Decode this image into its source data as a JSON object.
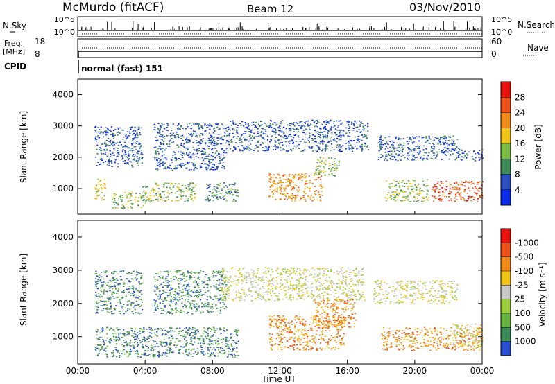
{
  "header": {
    "station": "McMurdo (fitACF)",
    "beam": "Beam 12",
    "date": "03/Nov/2010"
  },
  "status_panels": {
    "nsky_label": "N.Sky",
    "nsky_ticks": [
      "10^5",
      "10^0"
    ],
    "nsearch_label": "N.Search",
    "nsearch_ticks": [
      "10^5",
      "10^0"
    ],
    "freq_label_1": "Freq.",
    "freq_label_2": "[MHz]",
    "freq_ticks": [
      "18",
      "8"
    ],
    "nave_label": "Nave",
    "nave_ticks": [
      "60",
      "0"
    ],
    "cpid_label": "CPID",
    "cpid_value": "normal (fast) 151"
  },
  "chart_data": [
    {
      "type": "heatmap",
      "name": "power-panel",
      "ylabel": "Slant Range [km]",
      "ylim": [
        180,
        4500
      ],
      "yticks": [
        "1000",
        "2000",
        "3000",
        "4000"
      ],
      "colorbar_label": "Power [dB]",
      "colorbar_ticks": [
        "4",
        "8",
        "12",
        "16",
        "20",
        "24",
        "28"
      ],
      "colorbar_colors": [
        "#0a2ae8",
        "#2c4fc0",
        "#3e8a58",
        "#78bc44",
        "#f0c418",
        "#f08a18",
        "#ee5218",
        "#e8100c"
      ],
      "regions": [
        {
          "x": [
            1.0,
            3.8
          ],
          "r": [
            1700,
            3000
          ],
          "level": 1
        },
        {
          "x": [
            4.5,
            8.8
          ],
          "r": [
            1600,
            3100
          ],
          "level": 1
        },
        {
          "x": [
            8.8,
            17.2
          ],
          "r": [
            2200,
            3200
          ],
          "level": 1
        },
        {
          "x": [
            17.8,
            22.5
          ],
          "r": [
            1900,
            2700
          ],
          "level": 1
        },
        {
          "x": [
            22.5,
            24.0
          ],
          "r": [
            1900,
            2300
          ],
          "level": 1
        },
        {
          "x": [
            1.0,
            1.6
          ],
          "r": [
            650,
            1350
          ],
          "level": 4
        },
        {
          "x": [
            2.0,
            4.0
          ],
          "r": [
            380,
            900
          ],
          "level": 3
        },
        {
          "x": [
            3.8,
            7.0
          ],
          "r": [
            600,
            1200
          ],
          "level": 3
        },
        {
          "x": [
            7.5,
            9.5
          ],
          "r": [
            600,
            1200
          ],
          "level": 2
        },
        {
          "x": [
            11.3,
            14.5
          ],
          "r": [
            600,
            1500
          ],
          "level": 5
        },
        {
          "x": [
            14.0,
            15.5
          ],
          "r": [
            1400,
            2000
          ],
          "level": 3
        },
        {
          "x": [
            18.2,
            20.8
          ],
          "r": [
            600,
            1300
          ],
          "level": 3
        },
        {
          "x": [
            21.0,
            24.0
          ],
          "r": [
            600,
            1250
          ],
          "level": 6
        }
      ]
    },
    {
      "type": "heatmap",
      "name": "velocity-panel",
      "xlabel": "Time UT",
      "ylabel": "Slant Range [km]",
      "xlim": [
        0,
        24
      ],
      "xticks": [
        "00:00",
        "04:00",
        "08:00",
        "12:00",
        "16:00",
        "20:00",
        "00:00"
      ],
      "ylim": [
        180,
        4500
      ],
      "yticks": [
        "1000",
        "2000",
        "3000",
        "4000"
      ],
      "colorbar_label": "Velocity [m s⁻¹]",
      "colorbar_ticks": [
        "1000",
        "500",
        "100",
        "25",
        "-25",
        "-100",
        "-500",
        "-1000"
      ],
      "colorbar_colors": [
        "#2a4ed0",
        "#3a8a58",
        "#68b440",
        "#9ccf3c",
        "#c8c8c8",
        "#f0c418",
        "#f08a18",
        "#ee5218",
        "#e8100c"
      ],
      "regions": [
        {
          "x": [
            1.0,
            3.8
          ],
          "r": [
            1700,
            3000
          ],
          "level": 1
        },
        {
          "x": [
            4.5,
            8.8
          ],
          "r": [
            1700,
            3000
          ],
          "level": 1
        },
        {
          "x": [
            8.5,
            17.0
          ],
          "r": [
            2100,
            3100
          ],
          "level": 4
        },
        {
          "x": [
            17.5,
            22.5
          ],
          "r": [
            2000,
            2700
          ],
          "level": 4
        },
        {
          "x": [
            1.0,
            9.5
          ],
          "r": [
            400,
            1300
          ],
          "level": 1
        },
        {
          "x": [
            11.3,
            15.8
          ],
          "r": [
            600,
            1650
          ],
          "level": 6
        },
        {
          "x": [
            14.0,
            16.5
          ],
          "r": [
            1300,
            2150
          ],
          "level": 6
        },
        {
          "x": [
            18.0,
            24.0
          ],
          "r": [
            600,
            1300
          ],
          "level": 6
        },
        {
          "x": [
            22.2,
            24.0
          ],
          "r": [
            700,
            1400
          ],
          "level": 4
        }
      ]
    }
  ]
}
